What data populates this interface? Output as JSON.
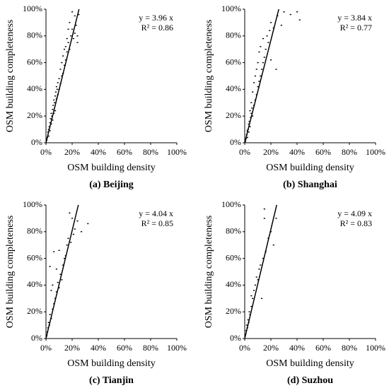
{
  "chart_data": [
    {
      "type": "scatter",
      "title": "(a) Beijing",
      "xlabel": "OSM building density",
      "ylabel": "OSM building completeness",
      "color": "#000000",
      "trendline": {
        "slope": 3.96,
        "label": "y = 3.96 x"
      },
      "r2_label": "R² = 0.86",
      "xlim": [
        0,
        100
      ],
      "ylim": [
        0,
        100
      ],
      "xticks": [
        {
          "value": 0,
          "label": "0%"
        },
        {
          "value": 20,
          "label": "20%"
        },
        {
          "value": 40,
          "label": "40%"
        },
        {
          "value": 60,
          "label": "60%"
        },
        {
          "value": 80,
          "label": "80%"
        },
        {
          "value": 100,
          "label": "100%"
        }
      ],
      "yticks": [
        {
          "value": 0,
          "label": "0%"
        },
        {
          "value": 20,
          "label": "20%"
        },
        {
          "value": 40,
          "label": "40%"
        },
        {
          "value": 60,
          "label": "60%"
        },
        {
          "value": 80,
          "label": "80%"
        },
        {
          "value": 100,
          "label": "100%"
        }
      ],
      "x": [
        0.5,
        1,
        1.5,
        2,
        2,
        2.5,
        3,
        3,
        3.5,
        4,
        4,
        4.5,
        5,
        5,
        5.5,
        6,
        6,
        6.5,
        7,
        7,
        7.5,
        8,
        8,
        8.5,
        9,
        9,
        10,
        10,
        11,
        11,
        12,
        12,
        13,
        13,
        14,
        14,
        15,
        15,
        16,
        16,
        17,
        17,
        18,
        18,
        19,
        20,
        20,
        21,
        22,
        22,
        23,
        24,
        25,
        24
      ],
      "values": [
        2,
        4,
        8,
        5,
        10,
        12,
        9,
        15,
        18,
        14,
        22,
        20,
        25,
        17,
        28,
        22,
        32,
        30,
        35,
        24,
        38,
        33,
        42,
        40,
        36,
        45,
        40,
        48,
        44,
        55,
        50,
        60,
        52,
        65,
        58,
        70,
        62,
        72,
        68,
        78,
        75,
        85,
        70,
        90,
        80,
        85,
        98,
        78,
        82,
        95,
        88,
        80,
        96,
        75
      ]
    },
    {
      "type": "scatter",
      "title": "(b) Shanghai",
      "xlabel": "OSM building density",
      "ylabel": "OSM building completeness",
      "color": "#000000",
      "trendline": {
        "slope": 3.84,
        "label": "y = 3.84 x"
      },
      "r2_label": "R² = 0.77",
      "xlim": [
        0,
        100
      ],
      "ylim": [
        0,
        100
      ],
      "xticks": [
        {
          "value": 0,
          "label": "0%"
        },
        {
          "value": 20,
          "label": "20%"
        },
        {
          "value": 40,
          "label": "40%"
        },
        {
          "value": 60,
          "label": "60%"
        },
        {
          "value": 80,
          "label": "80%"
        },
        {
          "value": 100,
          "label": "100%"
        }
      ],
      "yticks": [
        {
          "value": 0,
          "label": "0%"
        },
        {
          "value": 20,
          "label": "20%"
        },
        {
          "value": 40,
          "label": "40%"
        },
        {
          "value": 60,
          "label": "60%"
        },
        {
          "value": 80,
          "label": "80%"
        },
        {
          "value": 100,
          "label": "100%"
        }
      ],
      "x": [
        0.5,
        1,
        1.5,
        2,
        2,
        2.5,
        3,
        3,
        3.5,
        4,
        4,
        4.5,
        5,
        5,
        5.5,
        6,
        6,
        7,
        7,
        8,
        8,
        9,
        9,
        10,
        10,
        11,
        11,
        12,
        12,
        13,
        14,
        14,
        15,
        16,
        17,
        18,
        19,
        20,
        20,
        22,
        24,
        25,
        28,
        30,
        35,
        40,
        42
      ],
      "values": [
        1,
        3,
        6,
        4,
        9,
        10,
        8,
        14,
        16,
        12,
        24,
        19,
        22,
        30,
        26,
        20,
        38,
        28,
        45,
        32,
        50,
        36,
        55,
        42,
        60,
        46,
        68,
        50,
        72,
        55,
        60,
        78,
        64,
        70,
        80,
        75,
        84,
        62,
        90,
        86,
        55,
        95,
        88,
        98,
        96,
        98,
        92
      ]
    },
    {
      "type": "scatter",
      "title": "(c) Tianjin",
      "xlabel": "OSM building density",
      "ylabel": "OSM building completeness",
      "color": "#000000",
      "trendline": {
        "slope": 4.04,
        "label": "y = 4.04 x"
      },
      "r2_label": "R² = 0.85",
      "xlim": [
        0,
        100
      ],
      "ylim": [
        0,
        100
      ],
      "xticks": [
        {
          "value": 0,
          "label": "0%"
        },
        {
          "value": 20,
          "label": "20%"
        },
        {
          "value": 40,
          "label": "40%"
        },
        {
          "value": 60,
          "label": "60%"
        },
        {
          "value": 80,
          "label": "80%"
        },
        {
          "value": 100,
          "label": "100%"
        }
      ],
      "yticks": [
        {
          "value": 0,
          "label": "0%"
        },
        {
          "value": 20,
          "label": "20%"
        },
        {
          "value": 40,
          "label": "40%"
        },
        {
          "value": 60,
          "label": "60%"
        },
        {
          "value": 80,
          "label": "80%"
        },
        {
          "value": 100,
          "label": "100%"
        }
      ],
      "x": [
        0.5,
        1,
        1.5,
        2,
        2.5,
        3,
        3,
        4,
        4,
        5,
        5,
        6,
        6,
        7,
        8,
        8,
        9,
        10,
        10,
        11,
        12,
        13,
        14,
        15,
        16,
        17,
        18,
        19,
        20,
        21,
        22,
        24,
        27,
        32
      ],
      "values": [
        2,
        5,
        8,
        12,
        10,
        18,
        54,
        15,
        36,
        22,
        40,
        26,
        65,
        30,
        35,
        52,
        42,
        38,
        66,
        48,
        44,
        55,
        60,
        62,
        70,
        75,
        94,
        72,
        90,
        78,
        82,
        88,
        80,
        86
      ]
    },
    {
      "type": "scatter",
      "title": "(d) Suzhou",
      "xlabel": "OSM building density",
      "ylabel": "OSM building completeness",
      "color": "#000000",
      "trendline": {
        "slope": 4.09,
        "label": "y = 4.09 x"
      },
      "r2_label": "R² = 0.83",
      "xlim": [
        0,
        100
      ],
      "ylim": [
        0,
        100
      ],
      "xticks": [
        {
          "value": 0,
          "label": "0%"
        },
        {
          "value": 20,
          "label": "20%"
        },
        {
          "value": 40,
          "label": "40%"
        },
        {
          "value": 60,
          "label": "60%"
        },
        {
          "value": 80,
          "label": "80%"
        },
        {
          "value": 100,
          "label": "100%"
        }
      ],
      "yticks": [
        {
          "value": 0,
          "label": "0%"
        },
        {
          "value": 20,
          "label": "20%"
        },
        {
          "value": 40,
          "label": "40%"
        },
        {
          "value": 60,
          "label": "60%"
        },
        {
          "value": 80,
          "label": "80%"
        },
        {
          "value": 100,
          "label": "100%"
        }
      ],
      "x": [
        0.5,
        1,
        1.5,
        2,
        2.5,
        3,
        3.5,
        4,
        5,
        5,
        6,
        7,
        8,
        9,
        10,
        11,
        12,
        13,
        14,
        15,
        16,
        18,
        20,
        22,
        24,
        15
      ],
      "values": [
        3,
        6,
        10,
        8,
        14,
        12,
        20,
        18,
        24,
        32,
        30,
        36,
        40,
        46,
        44,
        52,
        55,
        30,
        60,
        90,
        65,
        75,
        80,
        70,
        90,
        97
      ]
    }
  ]
}
